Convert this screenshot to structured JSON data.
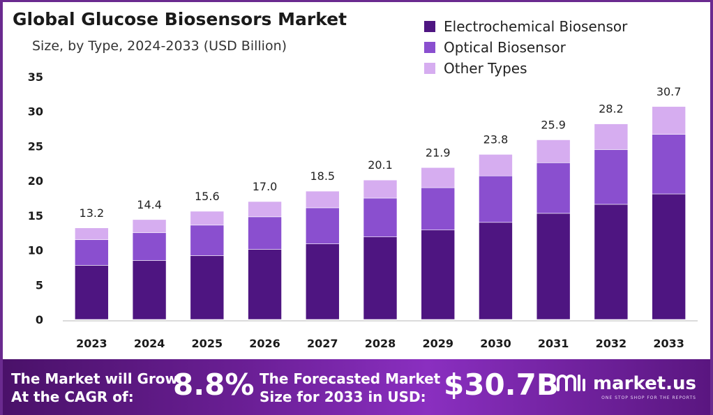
{
  "title": "Global Glucose Biosensors Market",
  "subtitle": "Size, by Type, 2024-2033 (USD Billion)",
  "colors": {
    "electrochemical": "#4e1581",
    "optical": "#8a4fcf",
    "other": "#d6adf0",
    "banner": "#6b1f96"
  },
  "legend": [
    {
      "label": "Electrochemical Biosensor",
      "color": "#4e1581"
    },
    {
      "label": "Optical Biosensor",
      "color": "#8a4fcf"
    },
    {
      "label": "Other Types",
      "color": "#d6adf0"
    }
  ],
  "chart_data": {
    "type": "bar",
    "stacked": true,
    "categories": [
      "2023",
      "2024",
      "2025",
      "2026",
      "2027",
      "2028",
      "2029",
      "2030",
      "2031",
      "2032",
      "2033"
    ],
    "series": [
      {
        "name": "Electrochemical Biosensor",
        "values": [
          7.8,
          8.5,
          9.2,
          10.1,
          10.9,
          11.9,
          12.9,
          14.0,
          15.3,
          16.6,
          18.1
        ]
      },
      {
        "name": "Optical Biosensor",
        "values": [
          3.7,
          4.0,
          4.4,
          4.7,
          5.2,
          5.6,
          6.1,
          6.7,
          7.3,
          7.9,
          8.6
        ]
      },
      {
        "name": "Other Types",
        "values": [
          1.7,
          1.9,
          2.0,
          2.2,
          2.4,
          2.6,
          2.9,
          3.1,
          3.3,
          3.7,
          4.0
        ]
      }
    ],
    "totals": [
      "13.2",
      "14.4",
      "15.6",
      "17.0",
      "18.5",
      "20.1",
      "21.9",
      "23.8",
      "25.9",
      "28.2",
      "30.7"
    ],
    "y_ticks": [
      0,
      5,
      10,
      15,
      20,
      25,
      30,
      35
    ],
    "ylim": [
      0,
      35
    ],
    "xlabel": "",
    "ylabel": "",
    "grid": false,
    "legend_position": "top-right"
  },
  "banner": {
    "cagr_label_line1": "The Market will Grow",
    "cagr_label_line2": "At the CAGR of:",
    "cagr_value": "8.8%",
    "forecast_label_line1": "The Forecasted Market",
    "forecast_label_line2": "Size for 2033 in USD:",
    "forecast_value": "$30.7B",
    "brand_name": "market.us",
    "brand_tagline": "ONE STOP SHOP FOR THE REPORTS",
    "brand_icon": "market-us-logo-icon"
  }
}
